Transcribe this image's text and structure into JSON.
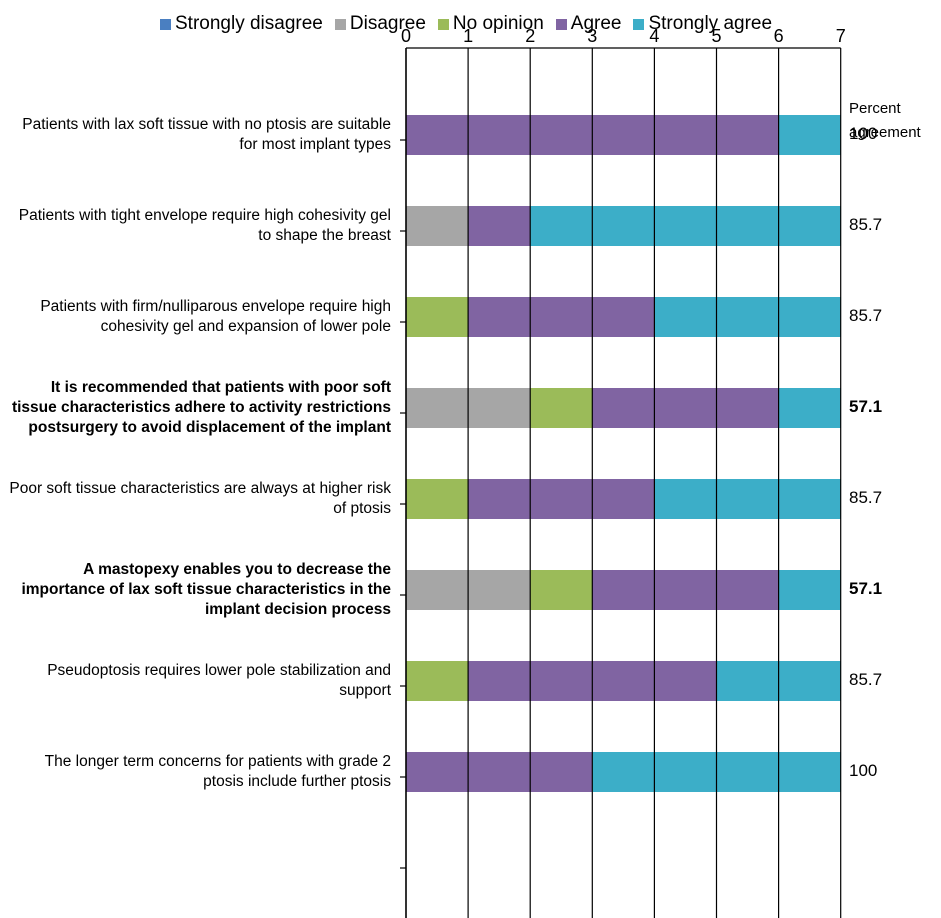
{
  "chart_data": {
    "type": "bar",
    "orientation": "horizontal",
    "stacked": true,
    "xlim": [
      0,
      7
    ],
    "xticks": [
      "0",
      "1",
      "2",
      "3",
      "4",
      "5",
      "6",
      "7"
    ],
    "x_axis_position": "top",
    "grid": true,
    "legend_position": "top",
    "categories": [
      {
        "label": "Patients with lax soft tissue with no ptosis are suitable for most implant types",
        "bold": false
      },
      {
        "label": "Patients with tight envelope require high cohesivity gel to shape the breast",
        "bold": false
      },
      {
        "label": "Patients with firm/nulliparous envelope require high cohesivity gel and expansion of lower pole",
        "bold": false
      },
      {
        "label": "It is recommended that patients with poor soft tissue characteristics adhere to activity restrictions postsurgery to avoid displacement of the implant",
        "bold": true
      },
      {
        "label": "Poor soft tissue characteristics are always at higher risk of ptosis",
        "bold": false
      },
      {
        "label": "A mastopexy enables you to decrease the importance of lax soft tissue characteristics in the implant decision process",
        "bold": true
      },
      {
        "label": "Pseudoptosis requires lower pole stabilization and support",
        "bold": false
      },
      {
        "label": "The longer term concerns for patients with grade 2 ptosis include further ptosis",
        "bold": false
      }
    ],
    "series": [
      {
        "name": "Strongly disagree",
        "color": "#4a7fc1",
        "values": [
          0,
          0,
          0,
          0,
          0,
          0,
          0,
          0
        ]
      },
      {
        "name": "Disagree",
        "color": "#a6a6a6",
        "values": [
          0,
          1,
          0,
          2,
          0,
          2,
          0,
          0
        ]
      },
      {
        "name": "No opinion",
        "color": "#9bbb59",
        "values": [
          0,
          0,
          1,
          1,
          1,
          1,
          1,
          0
        ]
      },
      {
        "name": "Agree",
        "color": "#8064a2",
        "values": [
          6,
          1,
          3,
          3,
          3,
          3,
          4,
          3
        ]
      },
      {
        "name": "Strongly agree",
        "color": "#3caec8",
        "values": [
          1,
          5,
          3,
          1,
          3,
          1,
          2,
          4
        ]
      }
    ],
    "percent_agreement": {
      "header": [
        "Percent",
        "agreement"
      ],
      "values": [
        "100",
        "85.7",
        "85.7",
        "57.1",
        "85.7",
        "57.1",
        "85.7",
        "100"
      ]
    }
  }
}
